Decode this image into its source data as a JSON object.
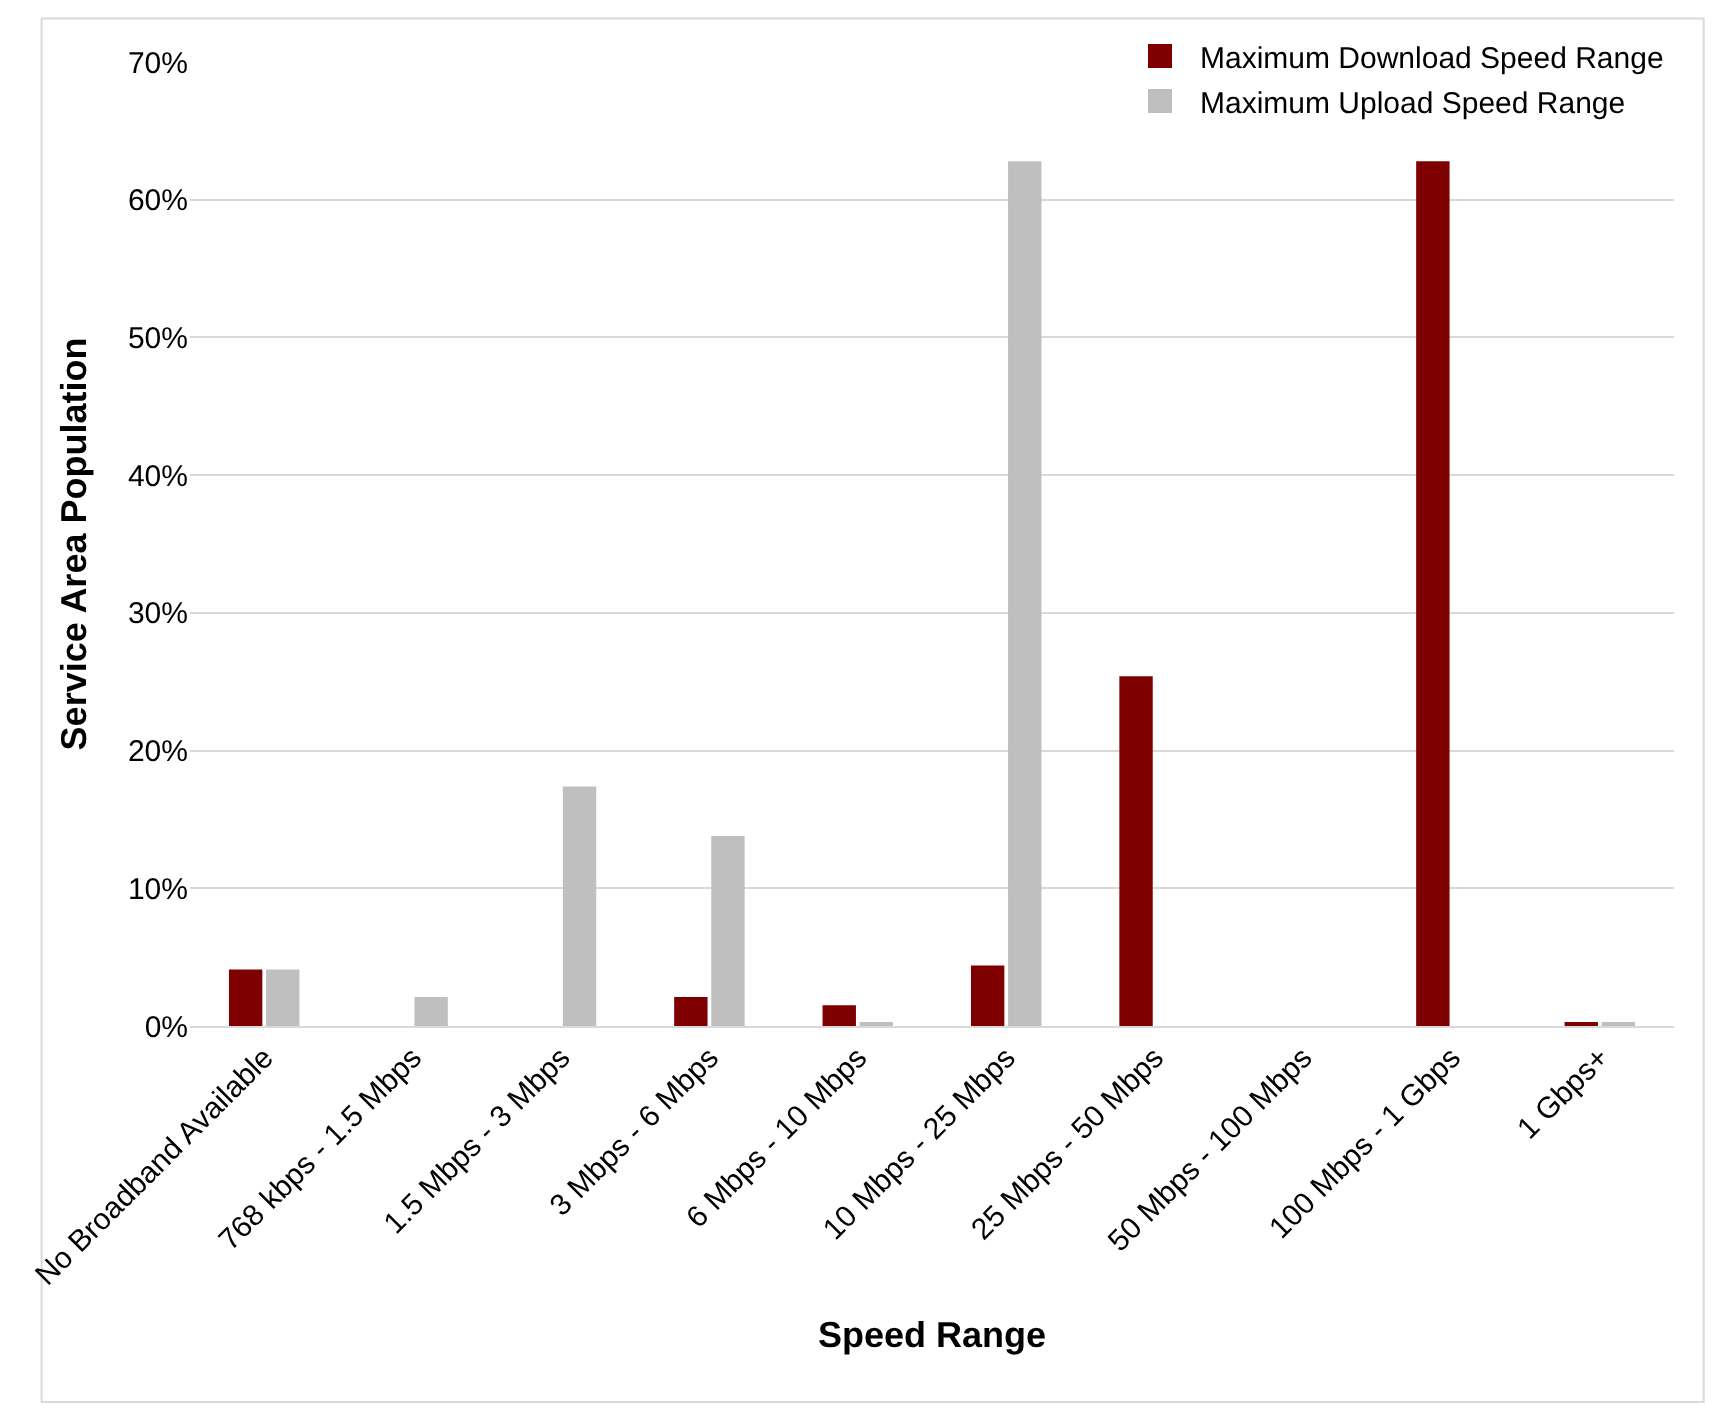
{
  "chart_data": {
    "type": "bar",
    "xlabel": "Speed Range",
    "ylabel": "Service Area Population",
    "categories": [
      "No Broadband Available",
      "768 kbps - 1.5 Mbps",
      "1.5 Mbps - 3 Mbps",
      "3 Mbps - 6 Mbps",
      "6 Mbps - 10 Mbps",
      "10 Mbps - 25 Mbps",
      "25 Mbps - 50 Mbps",
      "50 Mbps - 100 Mbps",
      "100 Mbps - 1 Gbps",
      "1 Gbps+"
    ],
    "series": [
      {
        "name": "Maximum Download Speed Range",
        "color": "#7f0000",
        "values": [
          4.1,
          0,
          0,
          2.1,
          1.5,
          4.4,
          25.4,
          0,
          62.8,
          0.2
        ]
      },
      {
        "name": "Maximum Upload Speed Range",
        "color": "#bfbfbf",
        "values": [
          4.1,
          2.1,
          17.4,
          13.8,
          0.2,
          62.8,
          0,
          0,
          0,
          0.2
        ]
      }
    ],
    "ylim": [
      0,
      70
    ],
    "yticks": [
      {
        "value": 0,
        "label": "0%"
      },
      {
        "value": 10,
        "label": "10%"
      },
      {
        "value": 20,
        "label": "20%"
      },
      {
        "value": 30,
        "label": "30%"
      },
      {
        "value": 40,
        "label": "40%"
      },
      {
        "value": 50,
        "label": "50%"
      },
      {
        "value": 60,
        "label": "60%"
      },
      {
        "value": 70,
        "label": "70%"
      }
    ],
    "grid": "y",
    "legend": "top right"
  }
}
